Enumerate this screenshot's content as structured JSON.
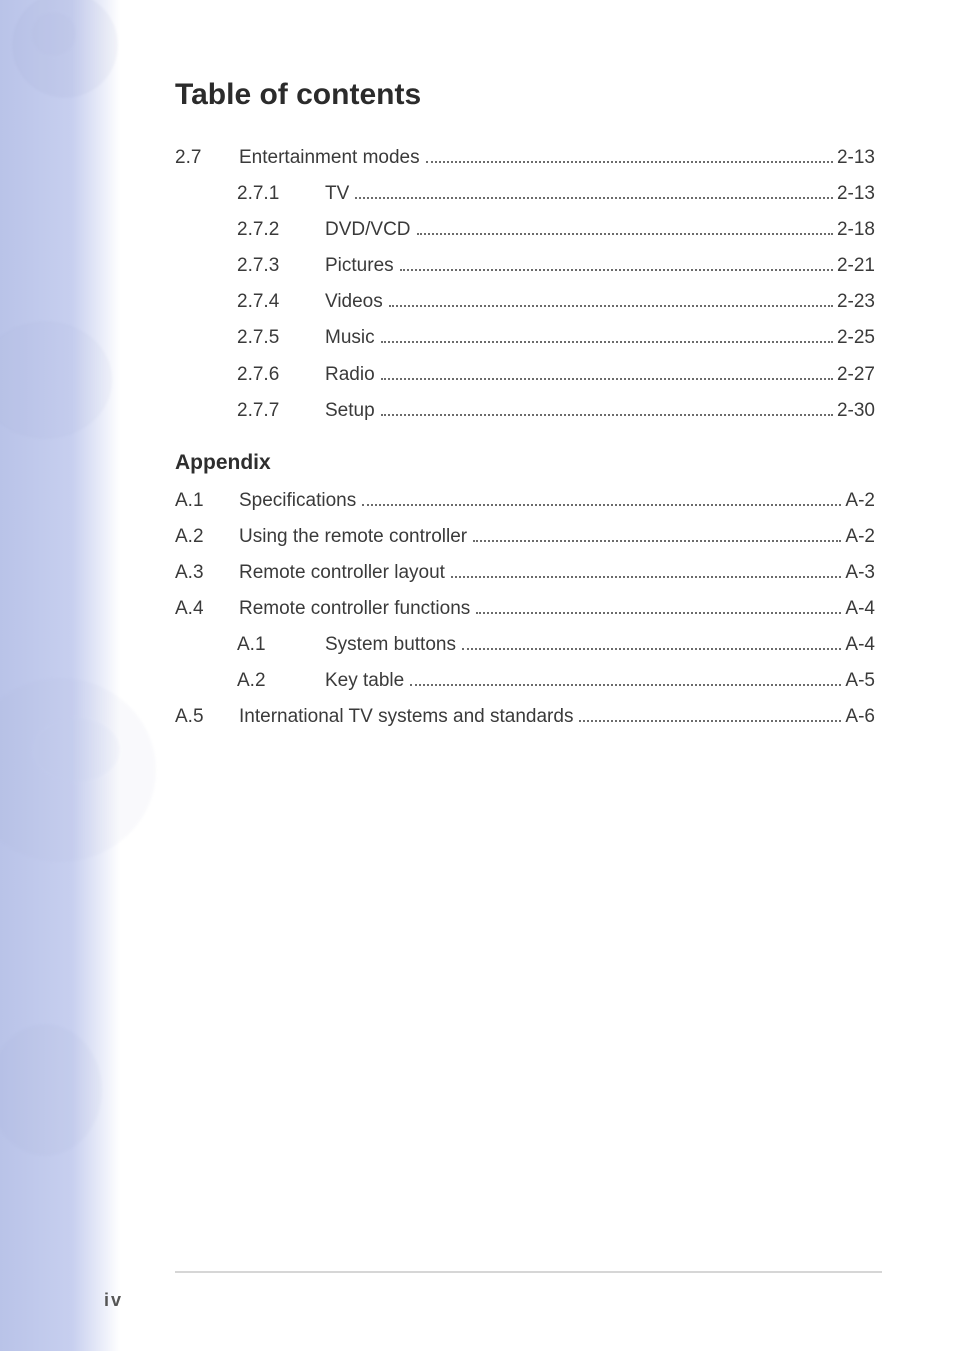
{
  "title": "Table of contents",
  "section1": {
    "num": "2.7",
    "label": "Entertainment modes",
    "page": "2-13",
    "items": [
      {
        "num": "2.7.1",
        "label": "TV",
        "page": "2-13"
      },
      {
        "num": "2.7.2",
        "label": "DVD/VCD",
        "page": "2-18"
      },
      {
        "num": "2.7.3",
        "label": "Pictures",
        "page": "2-21"
      },
      {
        "num": "2.7.4",
        "label": "Videos",
        "page": "2-23"
      },
      {
        "num": "2.7.5",
        "label": "Music",
        "page": "2-25"
      },
      {
        "num": "2.7.6",
        "label": "Radio",
        "page": "2-27"
      },
      {
        "num": "2.7.7",
        "label": "Setup",
        "page": "2-30"
      }
    ]
  },
  "appendix_heading": "Appendix",
  "appendix": [
    {
      "num": "A.1",
      "label": "Specifications",
      "page": "A-2"
    },
    {
      "num": "A.2",
      "label": "Using the remote controller",
      "page": "A-2"
    },
    {
      "num": "A.3",
      "label": "Remote controller layout",
      "page": "A-3"
    },
    {
      "num": "A.4",
      "label": "Remote controller functions",
      "page": "A-4"
    }
  ],
  "appendix_sub": [
    {
      "num": "A.1",
      "label": "System buttons",
      "page": "A-4"
    },
    {
      "num": "A.2",
      "label": "Key table",
      "page": "A-5"
    }
  ],
  "appendix_tail": [
    {
      "num": "A.5",
      "label": "International TV systems and standards",
      "page": "A-6"
    }
  ],
  "footer_page": "iv",
  "colors": {
    "text": "#3a3a3a",
    "heading": "#2b2b2b",
    "dots": "#6b6b6b",
    "side_gradient_from": "#b9c3e8",
    "side_gradient_to": "#ffffff",
    "rule": "#d6d6d6"
  }
}
